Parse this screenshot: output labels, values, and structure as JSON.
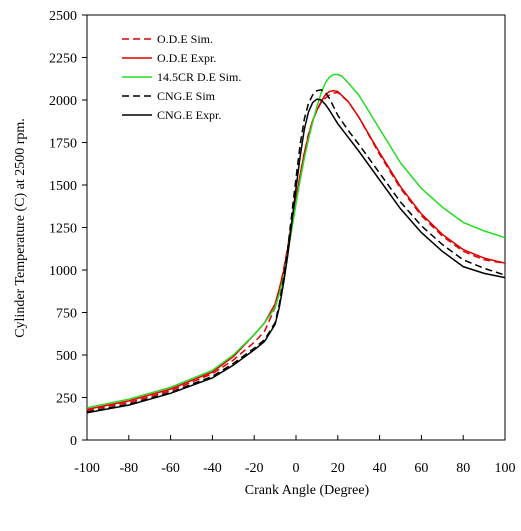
{
  "chart_data": {
    "type": "line",
    "title": "",
    "xlabel": "Crank Angle (Degree)",
    "ylabel": "Cylinder Temperature (C) at 2500 rpm.",
    "xlim": [
      -100,
      100
    ],
    "ylim": [
      0,
      2500
    ],
    "xticks": [
      -100,
      -80,
      -60,
      -40,
      -20,
      0,
      20,
      40,
      60,
      80,
      100
    ],
    "yticks": [
      0,
      250,
      500,
      750,
      1000,
      1250,
      1500,
      1750,
      2000,
      2250,
      2500
    ],
    "grid": false,
    "legend_position": "top-left",
    "series": [
      {
        "name": "O.D.E Sim.",
        "color": "#e00000",
        "dash": "dashed",
        "x": [
          -100,
          -80,
          -60,
          -40,
          -30,
          -20,
          -15,
          -10,
          -8,
          -6,
          -4,
          -2,
          0,
          2,
          4,
          6,
          8,
          10,
          12,
          14,
          16,
          18,
          20,
          25,
          30,
          40,
          50,
          60,
          70,
          80,
          90,
          100
        ],
        "y": [
          175,
          220,
          290,
          390,
          470,
          575,
          640,
          780,
          880,
          1000,
          1130,
          1280,
          1420,
          1560,
          1690,
          1800,
          1880,
          1940,
          1985,
          2010,
          2030,
          2040,
          2045,
          1990,
          1900,
          1680,
          1480,
          1320,
          1200,
          1110,
          1060,
          1040
        ]
      },
      {
        "name": "O.D.E Expr.",
        "color": "#e00000",
        "dash": "solid",
        "x": [
          -100,
          -80,
          -60,
          -40,
          -30,
          -20,
          -15,
          -10,
          -8,
          -6,
          -4,
          -2,
          0,
          2,
          4,
          6,
          8,
          10,
          12,
          14,
          16,
          18,
          20,
          25,
          30,
          40,
          50,
          60,
          70,
          80,
          90,
          100
        ],
        "y": [
          180,
          230,
          300,
          400,
          490,
          620,
          690,
          800,
          890,
          990,
          1120,
          1270,
          1420,
          1560,
          1690,
          1790,
          1880,
          1940,
          1990,
          2030,
          2050,
          2055,
          2050,
          1990,
          1900,
          1690,
          1490,
          1330,
          1210,
          1120,
          1070,
          1040
        ]
      },
      {
        "name": "14.5CR D.E Sim.",
        "color": "#22dd22",
        "dash": "solid",
        "x": [
          -100,
          -80,
          -60,
          -40,
          -30,
          -20,
          -15,
          -10,
          -8,
          -6,
          -4,
          -2,
          0,
          2,
          4,
          6,
          8,
          10,
          12,
          14,
          16,
          18,
          20,
          22,
          25,
          30,
          40,
          50,
          60,
          70,
          80,
          90,
          100
        ],
        "y": [
          190,
          240,
          310,
          410,
          500,
          620,
          690,
          780,
          860,
          960,
          1090,
          1240,
          1390,
          1530,
          1660,
          1770,
          1870,
          1960,
          2040,
          2100,
          2135,
          2150,
          2150,
          2140,
          2100,
          2030,
          1830,
          1630,
          1480,
          1370,
          1280,
          1230,
          1190
        ]
      },
      {
        "name": "CNG.E Sim",
        "color": "#000000",
        "dash": "dashed",
        "x": [
          -100,
          -80,
          -60,
          -40,
          -30,
          -20,
          -15,
          -10,
          -8,
          -6,
          -4,
          -2,
          0,
          2,
          4,
          6,
          8,
          10,
          12,
          14,
          16,
          18,
          20,
          25,
          30,
          40,
          50,
          60,
          70,
          80,
          90,
          100
        ],
        "y": [
          165,
          210,
          280,
          375,
          450,
          540,
          590,
          690,
          800,
          950,
          1120,
          1330,
          1540,
          1740,
          1890,
          1980,
          2030,
          2055,
          2060,
          2045,
          2010,
          1960,
          1910,
          1820,
          1740,
          1570,
          1400,
          1260,
          1150,
          1060,
          1010,
          970
        ]
      },
      {
        "name": "CNG.E Expr.",
        "color": "#000000",
        "dash": "solid",
        "x": [
          -100,
          -80,
          -60,
          -40,
          -30,
          -20,
          -15,
          -10,
          -8,
          -6,
          -4,
          -2,
          0,
          2,
          4,
          6,
          8,
          10,
          12,
          14,
          16,
          18,
          20,
          25,
          30,
          40,
          50,
          60,
          70,
          80,
          90,
          100
        ],
        "y": [
          160,
          205,
          275,
          365,
          440,
          530,
          580,
          680,
          780,
          920,
          1080,
          1280,
          1480,
          1670,
          1830,
          1930,
          1985,
          2005,
          2000,
          1975,
          1940,
          1900,
          1860,
          1780,
          1700,
          1530,
          1360,
          1220,
          1110,
          1020,
          980,
          955
        ]
      }
    ]
  }
}
